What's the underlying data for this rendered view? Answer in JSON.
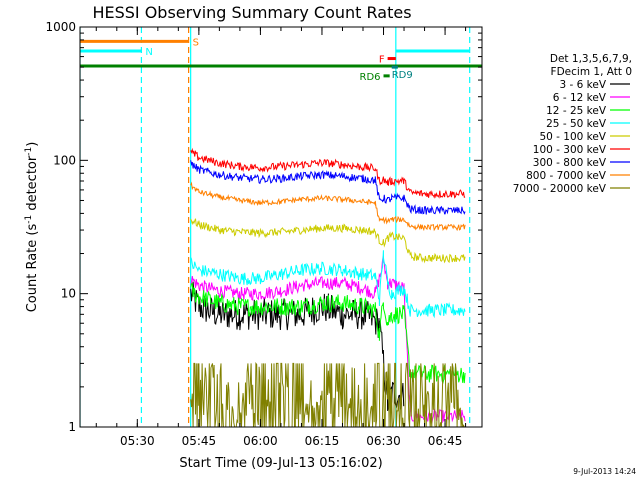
{
  "chart_data": {
    "type": "line",
    "title": "HESSI Observing Summary Count Rates",
    "xlabel": "Start Time (09-Jul-13 05:16:02)",
    "ylabel": "Count Rate (s⁻¹ detector⁻¹)",
    "ylabel_parts": {
      "base": "Count Rate (s",
      "exp1": "-1",
      "mid": " detector",
      "exp2": "-1",
      "end": ")"
    },
    "x_unit": "time of day (09-Jul-2013), 5:16:02 start",
    "xlim": [
      "05:16:02",
      "06:54:00"
    ],
    "ylim": [
      1,
      1000
    ],
    "yscale": "log",
    "x_ticks": [
      "05:30",
      "05:45",
      "06:00",
      "06:15",
      "06:30",
      "06:45"
    ],
    "y_ticks": [
      "1",
      "10",
      "100",
      "1000"
    ],
    "legend_header": [
      "Det 1,3,5,6,7,9,",
      "FDecim 1, Att 0"
    ],
    "legend_placement": "right",
    "footer_date": "9-Jul-2013 14:24",
    "series": [
      {
        "name": "3 - 6 keV",
        "color": "#000000",
        "points": [
          [
            "05:43:00",
            10
          ],
          [
            "05:45:00",
            8
          ],
          [
            "05:50:00",
            7
          ],
          [
            "05:55:00",
            7
          ],
          [
            "06:00:00",
            7
          ],
          [
            "06:05:00",
            7
          ],
          [
            "06:10:00",
            7
          ],
          [
            "06:15:00",
            8
          ],
          [
            "06:20:00",
            7
          ],
          [
            "06:25:00",
            7
          ],
          [
            "06:29:00",
            6
          ],
          [
            "06:31:00",
            1.5
          ],
          [
            "06:32:00",
            1.8
          ],
          [
            "06:35:00",
            1.7
          ]
        ]
      },
      {
        "name": "6 - 12 keV",
        "color": "#ff00ff",
        "points": [
          [
            "05:43:00",
            13
          ],
          [
            "05:45:00",
            11.5
          ],
          [
            "05:50:00",
            10.5
          ],
          [
            "05:55:00",
            10
          ],
          [
            "06:00:00",
            10
          ],
          [
            "06:05:00",
            10.5
          ],
          [
            "06:10:00",
            11.5
          ],
          [
            "06:15:00",
            12
          ],
          [
            "06:20:00",
            12
          ],
          [
            "06:25:00",
            11
          ],
          [
            "06:28:00",
            10
          ],
          [
            "06:29:30",
            15
          ],
          [
            "06:30:00",
            18
          ],
          [
            "06:31:00",
            12
          ],
          [
            "06:32:00",
            12
          ],
          [
            "06:35:00",
            11
          ],
          [
            "06:36:30",
            1.2
          ],
          [
            "06:40:00",
            1.2
          ],
          [
            "06:45:00",
            1.2
          ],
          [
            "06:50:00",
            1.2
          ]
        ]
      },
      {
        "name": "12 - 25 keV",
        "color": "#00ff00",
        "points": [
          [
            "05:43:00",
            10.5
          ],
          [
            "05:45:00",
            9.5
          ],
          [
            "05:50:00",
            8.5
          ],
          [
            "05:55:00",
            8
          ],
          [
            "06:00:00",
            8
          ],
          [
            "06:05:00",
            8
          ],
          [
            "06:10:00",
            8
          ],
          [
            "06:15:00",
            8.5
          ],
          [
            "06:20:00",
            8.5
          ],
          [
            "06:25:00",
            8
          ],
          [
            "06:28:00",
            7.5
          ],
          [
            "06:29:00",
            5
          ],
          [
            "06:30:00",
            9
          ],
          [
            "06:31:00",
            6
          ],
          [
            "06:32:00",
            7
          ],
          [
            "06:35:00",
            7
          ],
          [
            "06:36:30",
            2.5
          ],
          [
            "06:40:00",
            2.5
          ],
          [
            "06:45:00",
            2.5
          ],
          [
            "06:50:00",
            2.5
          ]
        ]
      },
      {
        "name": "25 - 50 keV",
        "color": "#00ffff",
        "points": [
          [
            "05:43:00",
            17
          ],
          [
            "05:45:00",
            15
          ],
          [
            "05:50:00",
            14
          ],
          [
            "05:55:00",
            13
          ],
          [
            "06:00:00",
            13
          ],
          [
            "06:05:00",
            14
          ],
          [
            "06:10:00",
            15
          ],
          [
            "06:15:00",
            15.5
          ],
          [
            "06:20:00",
            15
          ],
          [
            "06:25:00",
            14
          ],
          [
            "06:28:00",
            13.5
          ],
          [
            "06:29:00",
            9
          ],
          [
            "06:30:00",
            20
          ],
          [
            "06:31:00",
            12
          ],
          [
            "06:32:00",
            10
          ],
          [
            "06:35:00",
            11
          ],
          [
            "06:36:30",
            7.5
          ],
          [
            "06:40:00",
            7.5
          ],
          [
            "06:45:00",
            7.5
          ],
          [
            "06:50:00",
            7.5
          ]
        ]
      },
      {
        "name": "50 - 100 keV",
        "color": "#cccc00",
        "points": [
          [
            "05:43:00",
            36
          ],
          [
            "05:45:00",
            33
          ],
          [
            "05:50:00",
            30
          ],
          [
            "05:55:00",
            29
          ],
          [
            "06:00:00",
            28.5
          ],
          [
            "06:05:00",
            29
          ],
          [
            "06:10:00",
            30
          ],
          [
            "06:15:00",
            31
          ],
          [
            "06:20:00",
            31
          ],
          [
            "06:25:00",
            30
          ],
          [
            "06:28:00",
            29
          ],
          [
            "06:29:00",
            25
          ],
          [
            "06:30:00",
            24
          ],
          [
            "06:31:00",
            26
          ],
          [
            "06:32:00",
            27
          ],
          [
            "06:35:00",
            26
          ],
          [
            "06:36:30",
            19
          ],
          [
            "06:40:00",
            18.5
          ],
          [
            "06:45:00",
            18.5
          ],
          [
            "06:50:00",
            18.5
          ]
        ]
      },
      {
        "name": "100 - 300 keV",
        "color": "#ff0000",
        "points": [
          [
            "05:43:00",
            115
          ],
          [
            "05:45:00",
            105
          ],
          [
            "05:50:00",
            95
          ],
          [
            "05:55:00",
            90
          ],
          [
            "06:00:00",
            88
          ],
          [
            "06:05:00",
            90
          ],
          [
            "06:10:00",
            93
          ],
          [
            "06:15:00",
            96
          ],
          [
            "06:20:00",
            93
          ],
          [
            "06:25:00",
            89
          ],
          [
            "06:28:00",
            87
          ],
          [
            "06:29:00",
            70
          ],
          [
            "06:30:00",
            72
          ],
          [
            "06:31:00",
            68
          ],
          [
            "06:32:00",
            70
          ],
          [
            "06:35:00",
            70
          ],
          [
            "06:36:30",
            57
          ],
          [
            "06:40:00",
            56
          ],
          [
            "06:45:00",
            56
          ],
          [
            "06:50:00",
            56
          ]
        ]
      },
      {
        "name": "300 - 800 keV",
        "color": "#0000ff",
        "points": [
          [
            "05:43:00",
            95
          ],
          [
            "05:45:00",
            85
          ],
          [
            "05:50:00",
            78
          ],
          [
            "05:55:00",
            74
          ],
          [
            "06:00:00",
            72
          ],
          [
            "06:05:00",
            73
          ],
          [
            "06:10:00",
            76
          ],
          [
            "06:15:00",
            78
          ],
          [
            "06:20:00",
            76
          ],
          [
            "06:25:00",
            73
          ],
          [
            "06:28:00",
            71
          ],
          [
            "06:29:00",
            50
          ],
          [
            "06:30:00",
            52
          ],
          [
            "06:31:00",
            50
          ],
          [
            "06:32:00",
            52
          ],
          [
            "06:35:00",
            52
          ],
          [
            "06:36:30",
            43
          ],
          [
            "06:40:00",
            42
          ],
          [
            "06:45:00",
            42
          ],
          [
            "06:50:00",
            42
          ]
        ]
      },
      {
        "name": "800 - 7000 keV",
        "color": "#ff8000",
        "points": [
          [
            "05:43:00",
            65
          ],
          [
            "05:45:00",
            58
          ],
          [
            "05:50:00",
            53
          ],
          [
            "05:55:00",
            50
          ],
          [
            "06:00:00",
            48
          ],
          [
            "06:05:00",
            49
          ],
          [
            "06:10:00",
            51
          ],
          [
            "06:15:00",
            52
          ],
          [
            "06:20:00",
            51
          ],
          [
            "06:25:00",
            49
          ],
          [
            "06:28:00",
            48
          ],
          [
            "06:29:00",
            35
          ],
          [
            "06:30:00",
            36
          ],
          [
            "06:31:00",
            35
          ],
          [
            "06:32:00",
            36
          ],
          [
            "06:35:00",
            36
          ],
          [
            "06:36:30",
            32
          ],
          [
            "06:40:00",
            31.5
          ],
          [
            "06:45:00",
            31.5
          ],
          [
            "06:50:00",
            31.5
          ]
        ]
      },
      {
        "name": "7000 - 20000 keV",
        "color": "#808000",
        "points": [
          [
            "05:43:00",
            1.6
          ],
          [
            "05:45:00",
            1.5
          ],
          [
            "05:50:00",
            1.5
          ],
          [
            "05:55:00",
            1.5
          ],
          [
            "06:00:00",
            1.5
          ],
          [
            "06:05:00",
            1.5
          ],
          [
            "06:10:00",
            1.6
          ],
          [
            "06:15:00",
            1.6
          ],
          [
            "06:20:00",
            1.6
          ],
          [
            "06:25:00",
            1.5
          ],
          [
            "06:30:00",
            1.5
          ],
          [
            "06:35:00",
            1.4
          ],
          [
            "06:40:00",
            1.4
          ],
          [
            "06:45:00",
            1.4
          ],
          [
            "06:50:00",
            1.4
          ]
        ]
      }
    ],
    "flag_bars": [
      {
        "label": "S",
        "color": "#ff8000",
        "start": "05:16:02",
        "end": "05:42:30",
        "level": 780,
        "label_side": "end"
      },
      {
        "label": "N",
        "color": "#00ffff",
        "start": "05:16:02",
        "end": "05:31:00",
        "level": 660,
        "label_side": "end"
      },
      {
        "label": "N",
        "color": "#00ffff",
        "start": "06:33:00",
        "end": "06:51:00",
        "level": 660,
        "label_side": "none"
      },
      {
        "label": "F",
        "color": "#ff0000",
        "start": "06:31:00",
        "end": "06:33:00",
        "level": 580,
        "label_side": "start"
      },
      {
        "label": "RD9",
        "color": "#008080",
        "start": "06:32:00",
        "end": "06:33:30",
        "level": 500,
        "label_side": "end-below"
      },
      {
        "label": "RD6",
        "color": "#008000",
        "start": "06:30:00",
        "end": "06:31:30",
        "level": 430,
        "label_side": "start"
      }
    ],
    "saa_level": {
      "color": "#008000",
      "value": 510,
      "start": "05:16:02",
      "end": "06:54:00"
    },
    "vertical_markers": [
      {
        "time": "05:16:02",
        "color": "#00ffff",
        "style": "solid"
      },
      {
        "time": "05:31:00",
        "color": "#00ffff",
        "style": "dashed"
      },
      {
        "time": "05:42:30",
        "color": "#ff8000",
        "style": "dashed"
      },
      {
        "time": "05:43:00",
        "color": "#00ffff",
        "style": "solid"
      },
      {
        "time": "06:33:00",
        "color": "#00ffff",
        "style": "solid"
      },
      {
        "time": "06:51:00",
        "color": "#00ffff",
        "style": "dashed"
      }
    ],
    "grid": false
  }
}
